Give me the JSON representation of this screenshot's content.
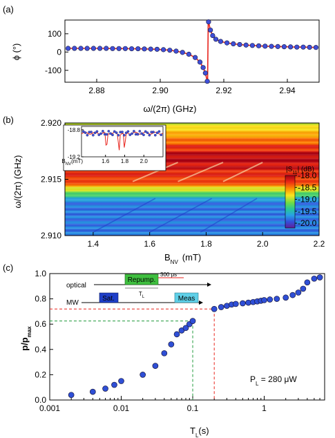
{
  "chart_data": [
    {
      "panel": "(a)",
      "type": "scatter",
      "xlabel": "ω/(2π) (GHz)",
      "ylabel": "ϕ (°)",
      "xlim": [
        2.87,
        2.95
      ],
      "ylim": [
        -165,
        175
      ],
      "xticks": [
        "2.88",
        "2.90",
        "2.92",
        "2.94"
      ],
      "xtick_values": [
        2.88,
        2.9,
        2.92,
        2.94
      ],
      "yticks": [
        "-100",
        "0",
        "100"
      ],
      "ytick_values": [
        -100,
        0,
        100
      ],
      "fit_color": "#e8221b",
      "marker_color": "#3f4fd8",
      "x": [
        2.871,
        2.873,
        2.875,
        2.877,
        2.879,
        2.881,
        2.883,
        2.885,
        2.887,
        2.889,
        2.891,
        2.893,
        2.895,
        2.897,
        2.899,
        2.901,
        2.903,
        2.905,
        2.907,
        2.909,
        2.911,
        2.9125,
        2.9135,
        2.9142,
        2.9148,
        2.9152,
        2.9158,
        2.9165,
        2.9175,
        2.919,
        2.921,
        2.923,
        2.925,
        2.927,
        2.929,
        2.931,
        2.933,
        2.935,
        2.937,
        2.939,
        2.941,
        2.943,
        2.945,
        2.947,
        2.949
      ],
      "y": [
        20,
        20,
        20,
        20,
        20,
        20,
        20,
        19,
        19,
        19,
        18,
        18,
        17,
        16,
        15,
        13,
        10,
        5,
        -2,
        -12,
        -30,
        -55,
        -85,
        -115,
        -160,
        165,
        120,
        90,
        70,
        58,
        50,
        45,
        41,
        38,
        36,
        34,
        32,
        31,
        30,
        29,
        28,
        27,
        27,
        26,
        25
      ]
    },
    {
      "panel": "(b)",
      "type": "heatmap",
      "xlabel": "B",
      "xlabel_sub": "NV",
      "xlabel_unit": "(mT)",
      "ylabel": "ω/(2π) (GHz)",
      "xlim": [
        1.3,
        2.2
      ],
      "ylim": [
        2.91,
        2.92
      ],
      "xticks": [
        "1.4",
        "1.6",
        "1.8",
        "2.0",
        "2.2"
      ],
      "xtick_values": [
        1.4,
        1.6,
        1.8,
        2.0,
        2.2
      ],
      "yticks": [
        "2.910",
        "2.915",
        "2.920"
      ],
      "ytick_values": [
        2.91,
        2.915,
        2.92
      ],
      "colorbar": {
        "label": "|S",
        "label_sub": "11",
        "label_rest": "| (dB)",
        "ticks": [
          "-18.0",
          "-18.5",
          "-19.0",
          "-19.5",
          "-20.0"
        ],
        "tick_values": [
          -18.0,
          -18.5,
          -19.0,
          -19.5,
          -20.0
        ],
        "range": [
          -18.0,
          -20.2
        ]
      },
      "inset": {
        "xlim": [
          1.35,
          2.2
        ],
        "ylim": [
          -19.2,
          -18.75
        ],
        "xticks": [
          "1.6",
          "1.8",
          "2.0"
        ],
        "xtick_values": [
          1.6,
          1.8,
          2.0
        ],
        "yticks": [
          "-18.8",
          "-19.2"
        ],
        "ytick_values": [
          -18.8,
          -19.2
        ],
        "xlabel": "B",
        "xlabel_sub": "NV",
        "xlabel_unit": "(mT)",
        "dips": [
          1.61,
          1.74,
          1.8
        ]
      }
    },
    {
      "panel": "(c)",
      "type": "scatter",
      "xscale": "log",
      "xlabel": "T",
      "xlabel_sub": "L",
      "xlabel_unit": "(s)",
      "ylabel": "p/p",
      "ylabel_sub": "max",
      "xlim": [
        0.001,
        7
      ],
      "ylim": [
        0.0,
        1.0
      ],
      "xticks": [
        "0.001",
        "0.01",
        "0.1",
        "1"
      ],
      "xtick_values": [
        0.001,
        0.01,
        0.1,
        1
      ],
      "yticks": [
        "0.0",
        "0.2",
        "0.4",
        "0.6",
        "0.8",
        "1.0"
      ],
      "ytick_values": [
        0.0,
        0.2,
        0.4,
        0.6,
        0.8,
        1.0
      ],
      "x": [
        0.002,
        0.004,
        0.006,
        0.008,
        0.01,
        0.02,
        0.03,
        0.04,
        0.05,
        0.06,
        0.07,
        0.08,
        0.09,
        0.1,
        0.2,
        0.25,
        0.3,
        0.35,
        0.4,
        0.5,
        0.6,
        0.7,
        0.8,
        0.9,
        1.0,
        1.2,
        1.5,
        2.0,
        2.5,
        3.0,
        3.5,
        4.0,
        5.0,
        6.0
      ],
      "y": [
        0.04,
        0.065,
        0.09,
        0.12,
        0.15,
        0.2,
        0.27,
        0.37,
        0.44,
        0.52,
        0.55,
        0.57,
        0.6,
        0.625,
        0.72,
        0.735,
        0.745,
        0.755,
        0.76,
        0.765,
        0.77,
        0.775,
        0.78,
        0.785,
        0.79,
        0.795,
        0.8,
        0.81,
        0.83,
        0.85,
        0.88,
        0.93,
        0.96,
        0.97
      ],
      "marker_color": "#2f4fd6",
      "guide_green": {
        "x": 0.1,
        "y": 0.625,
        "color": "#1f9a3a"
      },
      "guide_red": {
        "x": 0.2,
        "y": 0.72,
        "color": "#e8221b"
      },
      "annotation": {
        "text": "P",
        "sub": "L",
        "rest": " = 280 μW"
      },
      "sequence": {
        "optical_label": "optical",
        "mw_label": "MW",
        "repump_label": "Repump.",
        "sat_label": "Sat.",
        "meas_label": "Meas",
        "delay_label": "300 μs",
        "tl_label": "T",
        "tl_sub": "L",
        "repump_color": "#3fbf3f",
        "sat_color": "#1f3fc8",
        "meas_color": "#5fd0e8",
        "delay_color": "#e8221b"
      }
    }
  ]
}
